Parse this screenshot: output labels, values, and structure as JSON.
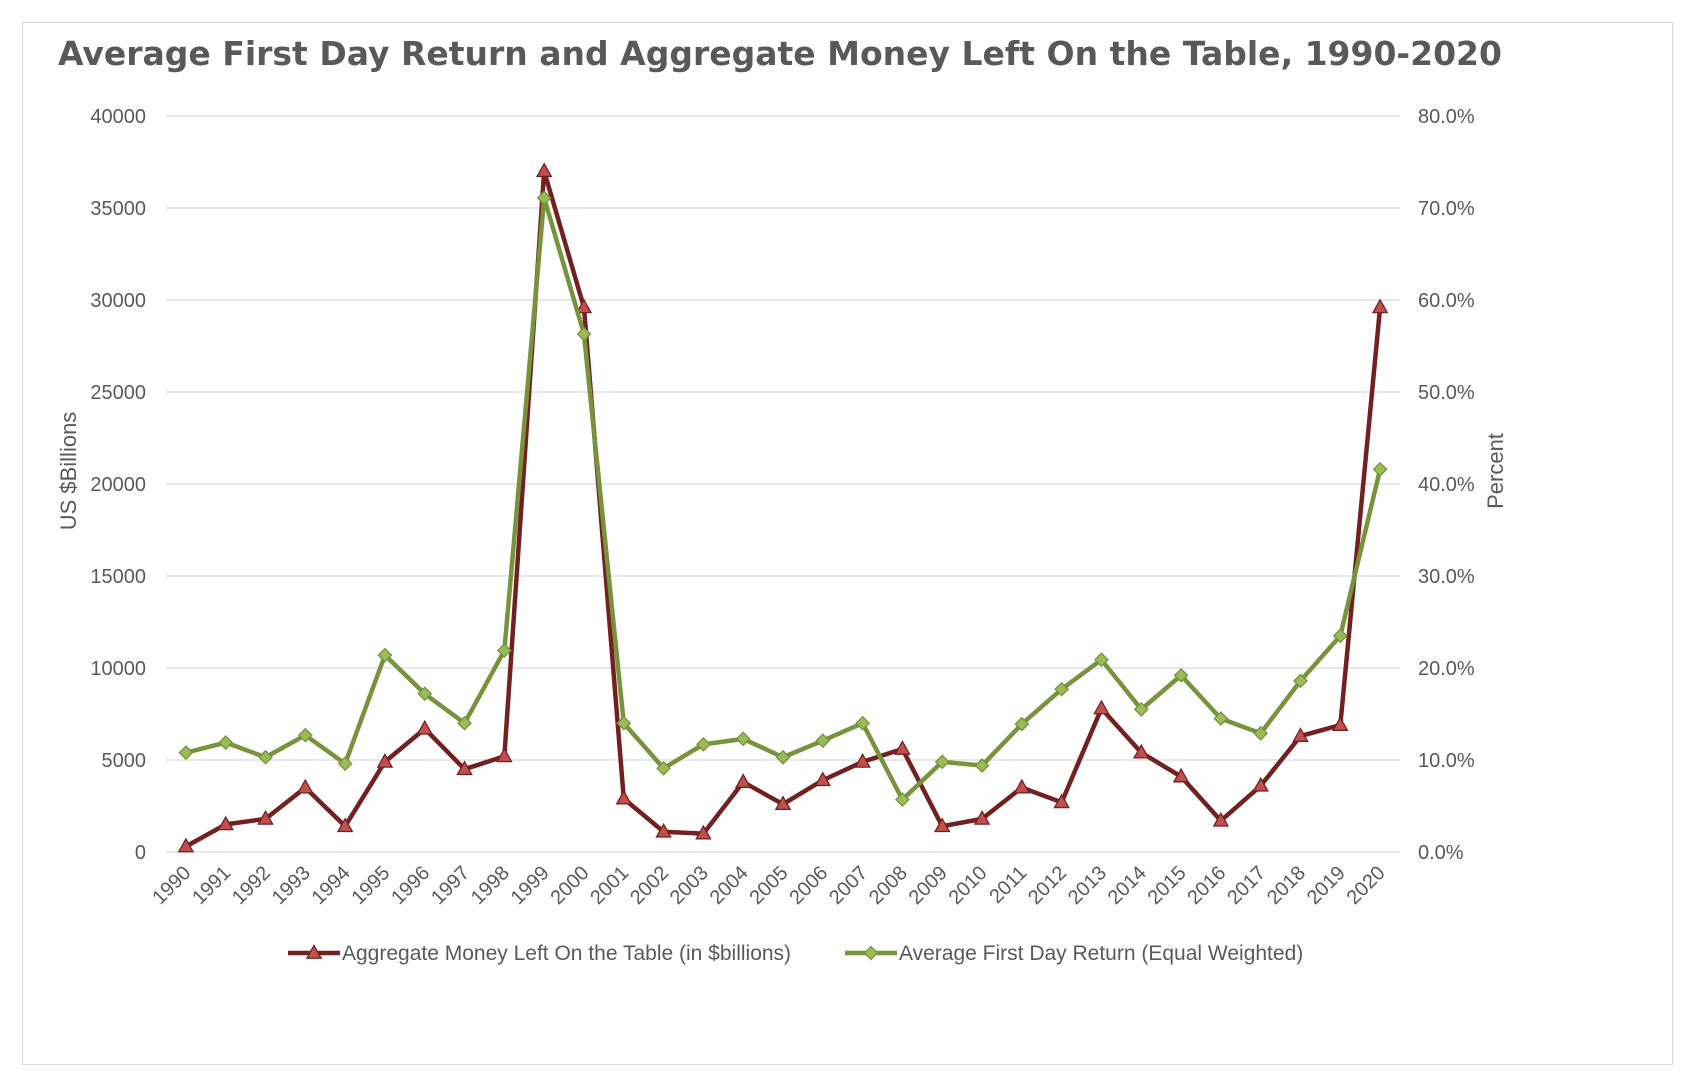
{
  "chart_data": {
    "type": "line",
    "title": "Average First Day Return and Aggregate Money Left On the Table, 1990-2020",
    "ylabel": "US $Billions",
    "y2label": "Percent",
    "ylim": [
      0,
      40000
    ],
    "y2lim": [
      0,
      80
    ],
    "yticks": [
      "0",
      "5000",
      "10000",
      "15000",
      "20000",
      "25000",
      "30000",
      "35000",
      "40000"
    ],
    "y2ticks": [
      "0.0%",
      "10.0%",
      "20.0%",
      "30.0%",
      "40.0%",
      "50.0%",
      "60.0%",
      "70.0%",
      "80.0%"
    ],
    "grid": true,
    "legend_position": "bottom",
    "categories": [
      "1990",
      "1991",
      "1992",
      "1993",
      "1994",
      "1995",
      "1996",
      "1997",
      "1998",
      "1999",
      "2000",
      "2001",
      "2002",
      "2003",
      "2004",
      "2005",
      "2006",
      "2007",
      "2008",
      "2009",
      "2010",
      "2011",
      "2012",
      "2013",
      "2014",
      "2015",
      "2016",
      "2017",
      "2018",
      "2019",
      "2020"
    ],
    "series": [
      {
        "name": "Aggregate Money Left On the Table (in $billions)",
        "axis": "left",
        "color": "#722020",
        "marker": "triangle",
        "marker_fill": "#c0504d",
        "values": [
          300,
          1500,
          1800,
          3500,
          1400,
          4900,
          6700,
          4500,
          5200,
          37000,
          29600,
          2900,
          1100,
          1000,
          3800,
          2600,
          3900,
          4900,
          5600,
          1400,
          1800,
          3500,
          2700,
          7800,
          5400,
          4100,
          1700,
          3600,
          6300,
          6900,
          29600
        ]
      },
      {
        "name": "Average First Day Return (Equal Weighted)",
        "axis": "right",
        "color": "#77933c",
        "marker": "diamond",
        "marker_fill": "#9bbb59",
        "values": [
          10.8,
          11.9,
          10.3,
          12.7,
          9.6,
          21.4,
          17.2,
          14.0,
          21.9,
          71.1,
          56.3,
          14.0,
          9.1,
          11.7,
          12.3,
          10.3,
          12.1,
          14.0,
          5.7,
          9.8,
          9.4,
          13.9,
          17.7,
          20.9,
          15.5,
          19.2,
          14.5,
          12.9,
          18.6,
          23.5,
          41.6
        ]
      }
    ]
  }
}
